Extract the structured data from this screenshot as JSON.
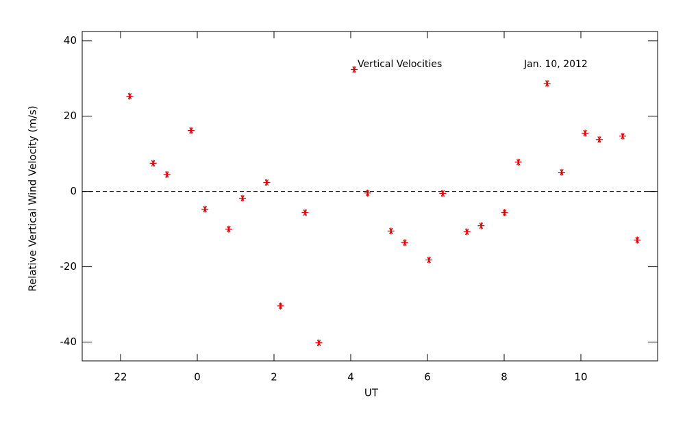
{
  "chart_data": {
    "type": "scatter",
    "xlabel": "UT",
    "ylabel": "Relative Vertical Wind Velocity (m/s)",
    "annotations": [
      "Vertical Velocities",
      "Jan. 10, 2012"
    ],
    "xlim": [
      -3,
      12
    ],
    "xticks": [
      {
        "value": -2,
        "label": "22"
      },
      0,
      2,
      4,
      6,
      8,
      10
    ],
    "ylim": [
      -45,
      42.5
    ],
    "yticks": [
      -40,
      -20,
      0,
      20,
      40
    ],
    "reference_line": 0,
    "series": [
      {
        "color": "#e00000",
        "x": [
          -1.76,
          -1.15,
          -0.79,
          -0.16,
          0.2,
          0.82,
          1.18,
          1.81,
          2.17,
          2.81,
          3.17,
          4.09,
          4.44,
          5.05,
          5.41,
          6.04,
          6.4,
          7.03,
          7.4,
          8.01,
          8.37,
          9.12,
          9.5,
          10.11,
          10.48,
          11.09,
          11.47
        ],
        "values": [
          25.3,
          7.5,
          4.5,
          16.2,
          -4.7,
          -10,
          -1.8,
          2.4,
          -30.4,
          -5.6,
          -40.2,
          32.4,
          -0.4,
          -10.5,
          -13.6,
          -18.2,
          -0.5,
          -10.7,
          -9.1,
          -5.6,
          7.8,
          28.7,
          5.1,
          15.5,
          13.8,
          14.7,
          -12.9
        ]
      }
    ]
  }
}
